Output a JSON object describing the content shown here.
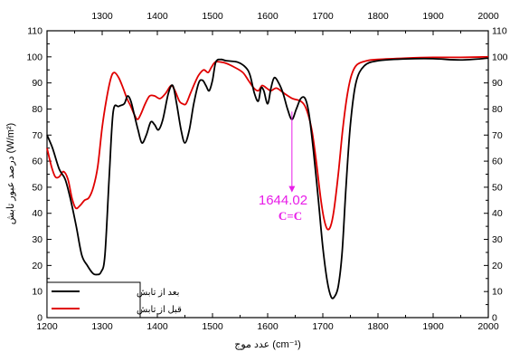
{
  "chart_data": {
    "type": "line",
    "xlabel": "عدد موج (cm⁻¹)",
    "ylabel": "درصد عبور تابش (W/m²)",
    "xlim": [
      1200,
      2000
    ],
    "ylim": [
      0,
      110
    ],
    "x_ticks_bottom": [
      1200,
      1300,
      1400,
      1500,
      1600,
      1700,
      1800,
      1900,
      2000
    ],
    "x_ticks_top": [
      1300,
      1400,
      1500,
      1600,
      1700,
      1800,
      1900,
      2000
    ],
    "y_ticks": [
      0,
      10,
      20,
      30,
      40,
      50,
      60,
      70,
      80,
      90,
      100,
      110
    ],
    "grid": false,
    "legend_position": "bottom-left",
    "series": [
      {
        "name": "بعد از تابش",
        "color": "#000000",
        "points": [
          [
            1200,
            70
          ],
          [
            1210,
            65
          ],
          [
            1222,
            57
          ],
          [
            1233,
            53
          ],
          [
            1243,
            45
          ],
          [
            1253,
            35
          ],
          [
            1263,
            24
          ],
          [
            1273,
            20
          ],
          [
            1283,
            17
          ],
          [
            1290,
            16.5
          ],
          [
            1298,
            17.5
          ],
          [
            1305,
            24
          ],
          [
            1313,
            55
          ],
          [
            1320,
            79
          ],
          [
            1330,
            81
          ],
          [
            1340,
            82
          ],
          [
            1346,
            85
          ],
          [
            1352,
            83
          ],
          [
            1358,
            78
          ],
          [
            1365,
            72
          ],
          [
            1372,
            67
          ],
          [
            1380,
            70
          ],
          [
            1388,
            75
          ],
          [
            1395,
            74
          ],
          [
            1402,
            72
          ],
          [
            1410,
            76
          ],
          [
            1420,
            86
          ],
          [
            1428,
            89
          ],
          [
            1435,
            82
          ],
          [
            1443,
            72
          ],
          [
            1450,
            67
          ],
          [
            1458,
            72
          ],
          [
            1466,
            82
          ],
          [
            1475,
            90
          ],
          [
            1482,
            91
          ],
          [
            1488,
            89
          ],
          [
            1494,
            87
          ],
          [
            1500,
            91
          ],
          [
            1506,
            98
          ],
          [
            1515,
            99
          ],
          [
            1525,
            98.5
          ],
          [
            1545,
            98
          ],
          [
            1560,
            96
          ],
          [
            1568,
            93
          ],
          [
            1576,
            86
          ],
          [
            1583,
            83
          ],
          [
            1588,
            88
          ],
          [
            1593,
            87
          ],
          [
            1600,
            82
          ],
          [
            1606,
            88
          ],
          [
            1612,
            92
          ],
          [
            1620,
            90
          ],
          [
            1628,
            86
          ],
          [
            1636,
            80
          ],
          [
            1644,
            76
          ],
          [
            1652,
            80
          ],
          [
            1660,
            84
          ],
          [
            1668,
            84
          ],
          [
            1675,
            78
          ],
          [
            1683,
            64
          ],
          [
            1692,
            45
          ],
          [
            1700,
            27
          ],
          [
            1708,
            14
          ],
          [
            1715,
            8
          ],
          [
            1721,
            8
          ],
          [
            1728,
            12
          ],
          [
            1735,
            25
          ],
          [
            1742,
            50
          ],
          [
            1750,
            74
          ],
          [
            1760,
            90
          ],
          [
            1775,
            96.5
          ],
          [
            1800,
            98.5
          ],
          [
            1850,
            99.2
          ],
          [
            1900,
            99.3
          ],
          [
            1950,
            98.8
          ],
          [
            2000,
            99.5
          ]
        ]
      },
      {
        "name": "قبل از تابش",
        "color": "#e00000",
        "points": [
          [
            1200,
            65
          ],
          [
            1208,
            58
          ],
          [
            1215,
            54
          ],
          [
            1222,
            54
          ],
          [
            1230,
            56
          ],
          [
            1238,
            53
          ],
          [
            1245,
            46
          ],
          [
            1252,
            42
          ],
          [
            1260,
            43
          ],
          [
            1268,
            45
          ],
          [
            1276,
            46
          ],
          [
            1284,
            50
          ],
          [
            1292,
            58
          ],
          [
            1300,
            73
          ],
          [
            1308,
            84
          ],
          [
            1316,
            92
          ],
          [
            1322,
            94
          ],
          [
            1330,
            92
          ],
          [
            1338,
            88
          ],
          [
            1345,
            84
          ],
          [
            1352,
            81
          ],
          [
            1358,
            78
          ],
          [
            1364,
            76
          ],
          [
            1370,
            78
          ],
          [
            1378,
            82
          ],
          [
            1386,
            85
          ],
          [
            1395,
            85
          ],
          [
            1405,
            84
          ],
          [
            1415,
            86
          ],
          [
            1425,
            89
          ],
          [
            1432,
            87
          ],
          [
            1440,
            83
          ],
          [
            1446,
            82
          ],
          [
            1452,
            82
          ],
          [
            1460,
            86
          ],
          [
            1468,
            90
          ],
          [
            1475,
            93
          ],
          [
            1484,
            95
          ],
          [
            1492,
            94
          ],
          [
            1498,
            96
          ],
          [
            1505,
            98
          ],
          [
            1515,
            98
          ],
          [
            1525,
            97.5
          ],
          [
            1540,
            96
          ],
          [
            1555,
            94
          ],
          [
            1565,
            91
          ],
          [
            1575,
            88
          ],
          [
            1583,
            87
          ],
          [
            1590,
            89
          ],
          [
            1598,
            88
          ],
          [
            1606,
            87
          ],
          [
            1616,
            88
          ],
          [
            1630,
            86
          ],
          [
            1645,
            84
          ],
          [
            1660,
            83
          ],
          [
            1670,
            80
          ],
          [
            1680,
            72
          ],
          [
            1688,
            60
          ],
          [
            1696,
            46
          ],
          [
            1702,
            38
          ],
          [
            1708,
            34
          ],
          [
            1714,
            35
          ],
          [
            1720,
            41
          ],
          [
            1728,
            55
          ],
          [
            1736,
            72
          ],
          [
            1744,
            85
          ],
          [
            1752,
            93
          ],
          [
            1762,
            97
          ],
          [
            1780,
            98.5
          ],
          [
            1800,
            99
          ],
          [
            1850,
            99.5
          ],
          [
            1900,
            99.8
          ],
          [
            1950,
            99.8
          ],
          [
            2000,
            100
          ]
        ]
      }
    ],
    "annotation": {
      "x": 1644,
      "arrow_from_y": 79,
      "arrow_to_y": 48,
      "value_text": "1644.02",
      "formula_text": "C=C",
      "color": "#e81ce8"
    }
  }
}
